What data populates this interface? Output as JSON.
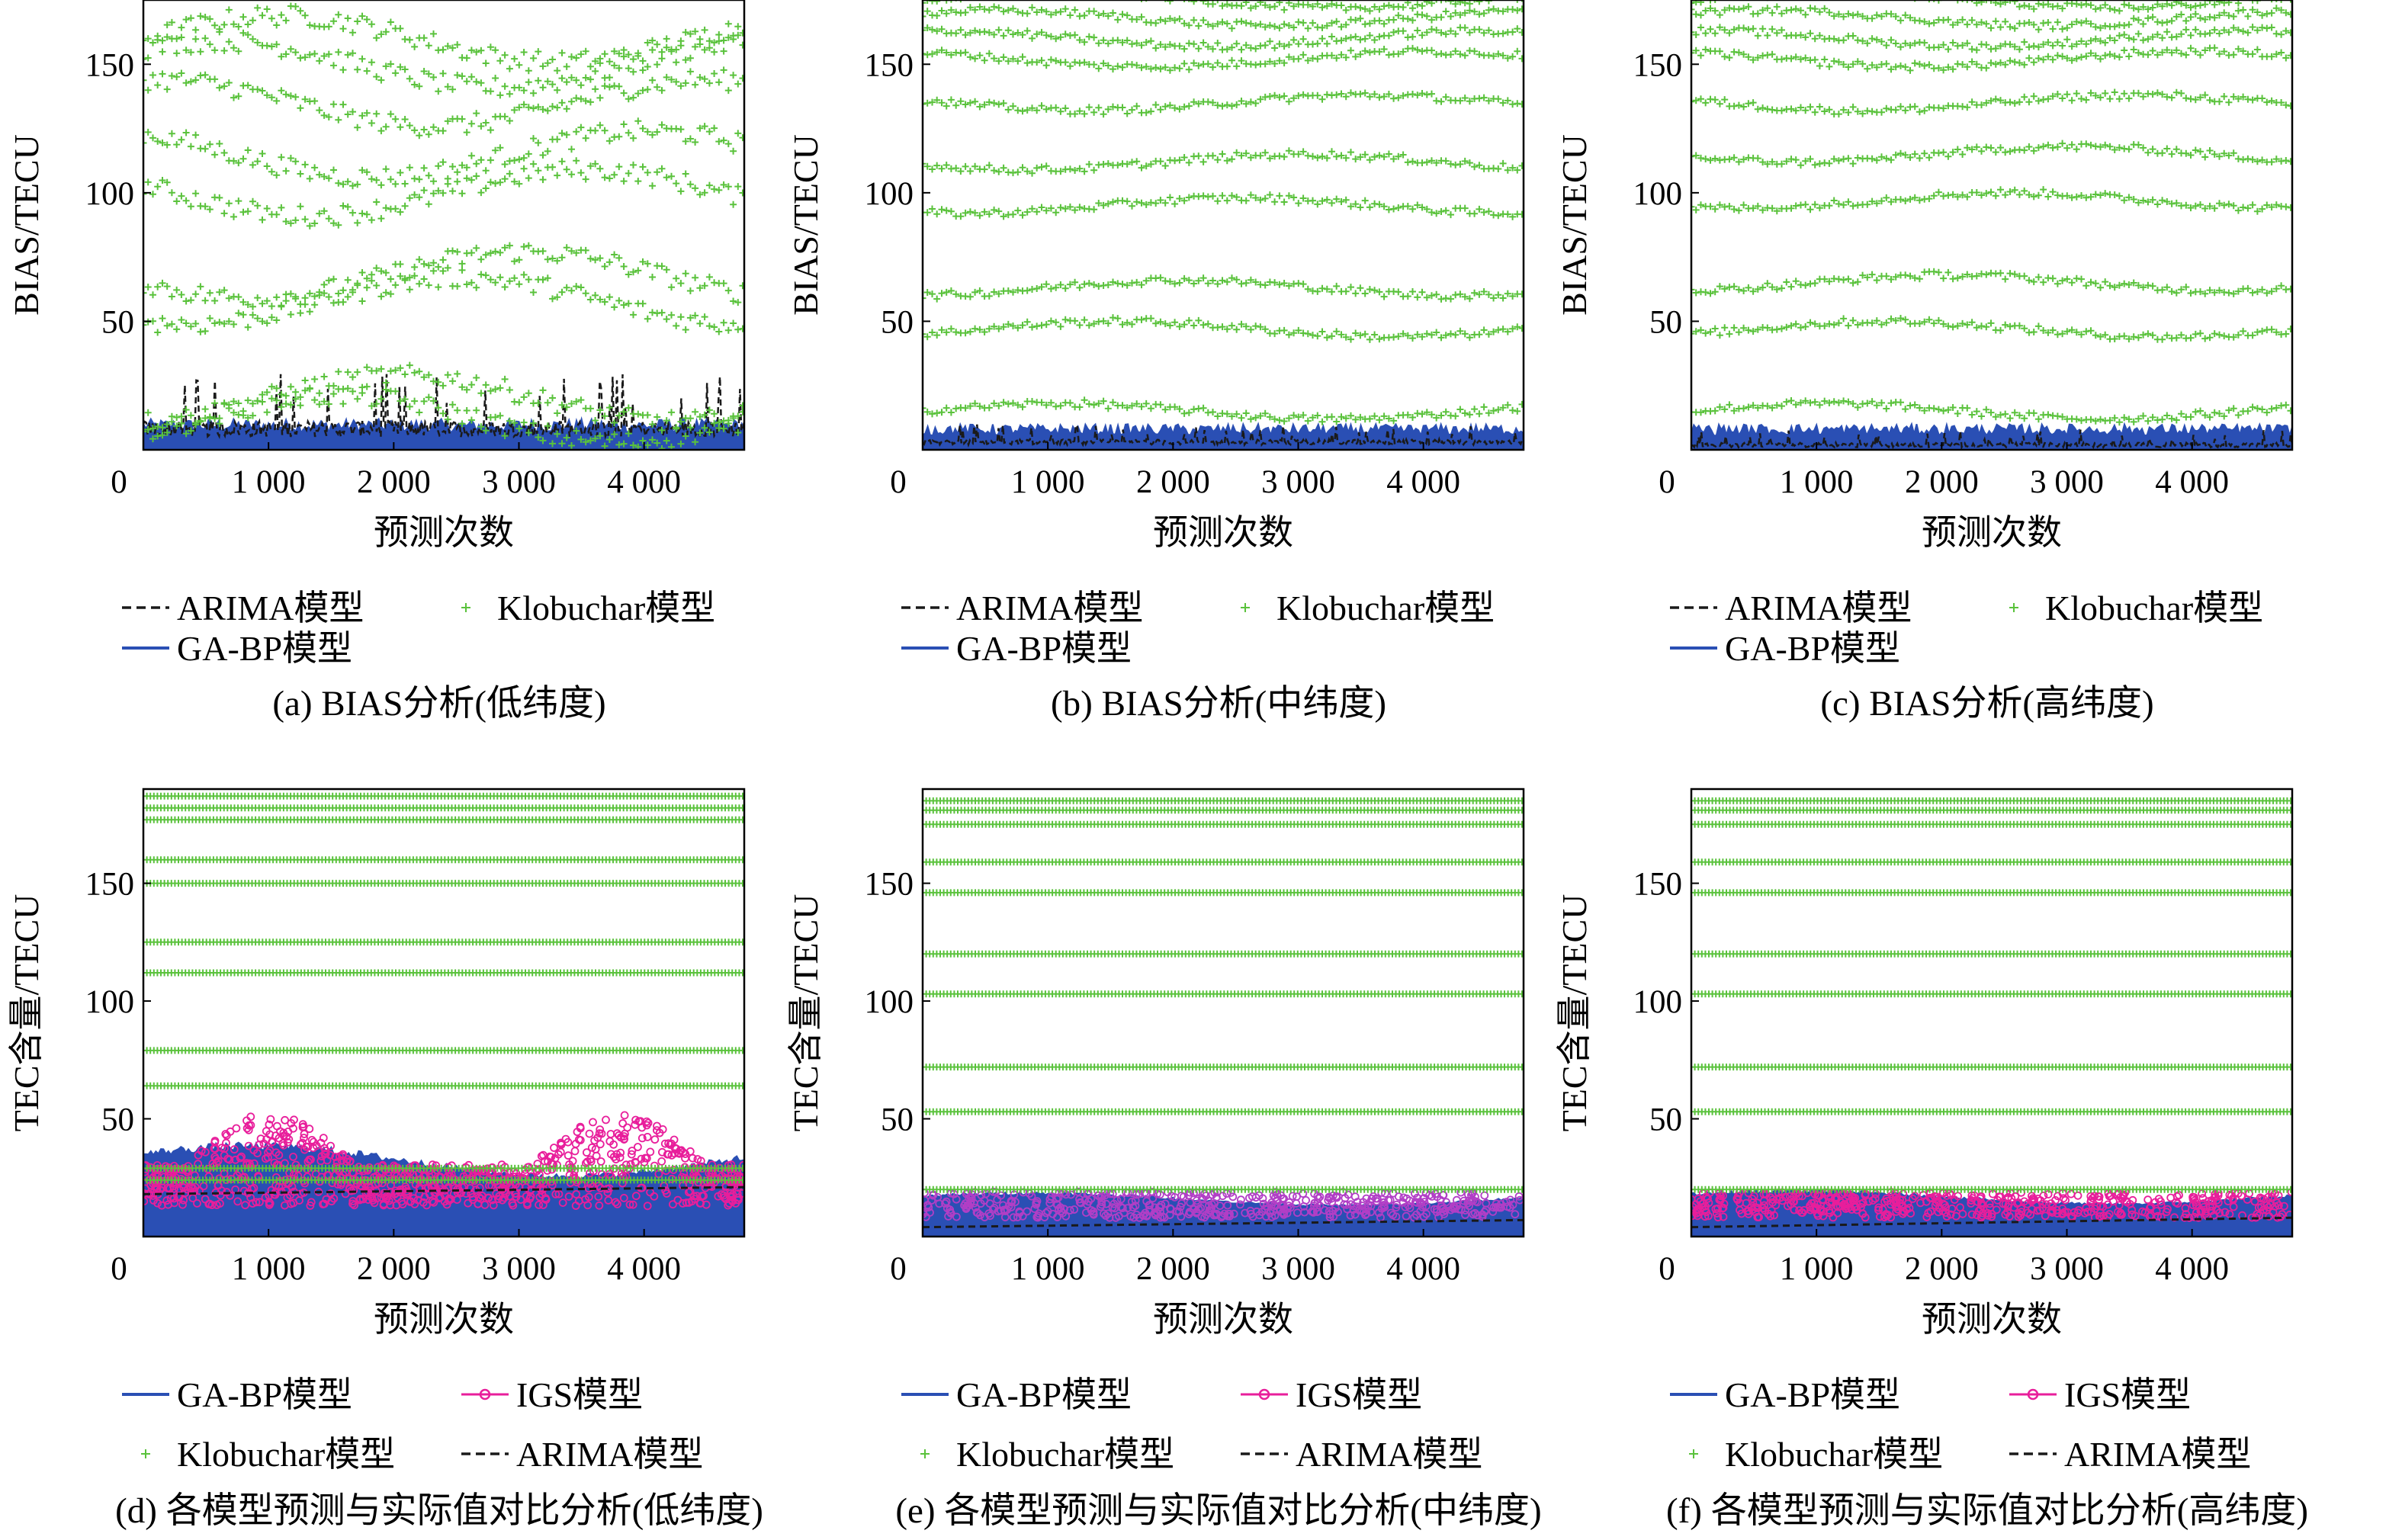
{
  "figure": {
    "ytick_labels_bias": [
      "50",
      "100",
      "150"
    ],
    "ytick_labels_tec": [
      "50",
      "100",
      "150"
    ],
    "xtick_labels": [
      "0",
      "1 000",
      "2 000",
      "3 000",
      "4 000"
    ],
    "colors": {
      "klobuchar": "#5ac23c",
      "gabp": "#2a4fb4",
      "arima": "#1a1a1a",
      "igs": "#e81e9b",
      "frame": "#000000"
    }
  },
  "chart_data": [
    {
      "id": "a",
      "type": "scatter",
      "title": "(a) BIAS分析(低纬度)",
      "xlabel": "预测次数",
      "ylabel": "BIAS/TECU",
      "xlim": [
        0,
        4800
      ],
      "ylim": [
        0,
        175
      ],
      "legend": [
        "ARIMA模型",
        "Klobuchar模型",
        "GA-BP模型"
      ],
      "series": [
        {
          "name": "Klobuchar模型",
          "marker": "+",
          "levels": [
            160,
            150,
            135,
            115,
            100,
            68,
            58,
            20,
            12
          ]
        },
        {
          "name": "GA-BP模型",
          "style": "line",
          "approx_range": [
            0,
            12
          ]
        },
        {
          "name": "ARIMA模型",
          "style": "dashed",
          "approx_range": [
            5,
            30
          ]
        }
      ]
    },
    {
      "id": "b",
      "type": "scatter",
      "title": "(b) BIAS分析(中纬度)",
      "xlabel": "预测次数",
      "ylabel": "BIAS/TECU",
      "xlim": [
        0,
        4800
      ],
      "ylim": [
        0,
        175
      ],
      "legend": [
        "ARIMA模型",
        "Klobuchar模型",
        "GA-BP模型"
      ],
      "series": [
        {
          "name": "Klobuchar模型",
          "marker": "+",
          "levels": [
            175,
            168,
            160,
            152,
            135,
            112,
            95,
            63,
            47,
            15
          ]
        },
        {
          "name": "GA-BP模型",
          "style": "line",
          "approx_range": [
            0,
            10
          ]
        },
        {
          "name": "ARIMA模型",
          "style": "dashed",
          "approx_range": [
            2,
            10
          ]
        }
      ]
    },
    {
      "id": "c",
      "type": "scatter",
      "title": "(c) BIAS分析(高纬度)",
      "xlabel": "预测次数",
      "ylabel": "BIAS/TECU",
      "xlim": [
        0,
        4800
      ],
      "ylim": [
        0,
        175
      ],
      "legend": [
        "ARIMA模型",
        "Klobuchar模型",
        "GA-BP模型"
      ],
      "series": [
        {
          "name": "Klobuchar模型",
          "marker": "+",
          "levels": [
            175,
            168,
            160,
            152,
            135,
            115,
            97,
            65,
            47,
            15
          ]
        },
        {
          "name": "GA-BP模型",
          "style": "line",
          "approx_range": [
            0,
            10
          ]
        },
        {
          "name": "ARIMA模型",
          "style": "dashed",
          "approx_range": [
            1,
            8
          ]
        }
      ]
    },
    {
      "id": "d",
      "type": "scatter",
      "title": "(d) 各模型预测与实际值对比分析(低纬度)",
      "xlabel": "预测次数",
      "ylabel": "TEC含量/TECU",
      "xlim": [
        0,
        4800
      ],
      "ylim": [
        0,
        190
      ],
      "legend": [
        "GA-BP模型",
        "IGS模型",
        "Klobuchar模型",
        "ARIMA模型"
      ],
      "series": [
        {
          "name": "Klobuchar模型",
          "marker": "+",
          "levels": [
            187,
            182,
            177,
            160,
            150,
            125,
            112,
            79,
            64,
            29,
            24
          ]
        },
        {
          "name": "GA-BP模型",
          "style": "line",
          "approx_range": [
            3,
            40
          ]
        },
        {
          "name": "IGS模型",
          "marker": "o",
          "approx_range": [
            5,
            52
          ]
        },
        {
          "name": "ARIMA模型",
          "style": "dashed",
          "approx_values": [
            18,
            21
          ]
        }
      ]
    },
    {
      "id": "e",
      "type": "scatter",
      "title": "(e) 各模型预测与实际值对比分析(中纬度)",
      "xlabel": "预测次数",
      "ylabel": "TEC含量/TECU",
      "xlim": [
        0,
        4800
      ],
      "ylim": [
        0,
        190
      ],
      "legend": [
        "GA-BP模型",
        "IGS模型",
        "Klobuchar模型",
        "ARIMA模型"
      ],
      "series": [
        {
          "name": "Klobuchar模型",
          "marker": "+",
          "levels": [
            185,
            181,
            175,
            159,
            146,
            120,
            103,
            72,
            53,
            20
          ]
        },
        {
          "name": "GA-BP模型",
          "style": "line",
          "approx_range": [
            4,
            19
          ]
        },
        {
          "name": "IGS模型",
          "marker": "o",
          "approx_range": [
            4,
            24
          ]
        },
        {
          "name": "ARIMA模型",
          "style": "dashed",
          "approx_values": [
            4,
            7
          ]
        }
      ]
    },
    {
      "id": "f",
      "type": "scatter",
      "title": "(f) 各模型预测与实际值对比分析(高纬度)",
      "xlabel": "预测次数",
      "ylabel": "TEC含量/TECU",
      "xlim": [
        0,
        4800
      ],
      "ylim": [
        0,
        190
      ],
      "legend": [
        "GA-BP模型",
        "IGS模型",
        "Klobuchar模型",
        "ARIMA模型"
      ],
      "series": [
        {
          "name": "Klobuchar模型",
          "marker": "+",
          "levels": [
            185,
            181,
            175,
            159,
            146,
            120,
            103,
            72,
            53,
            20
          ]
        },
        {
          "name": "GA-BP模型",
          "style": "line",
          "approx_range": [
            4,
            20
          ]
        },
        {
          "name": "IGS模型",
          "marker": "o",
          "approx_range": [
            4,
            24
          ]
        },
        {
          "name": "ARIMA模型",
          "style": "dashed",
          "approx_values": [
            4,
            8
          ]
        }
      ]
    }
  ]
}
